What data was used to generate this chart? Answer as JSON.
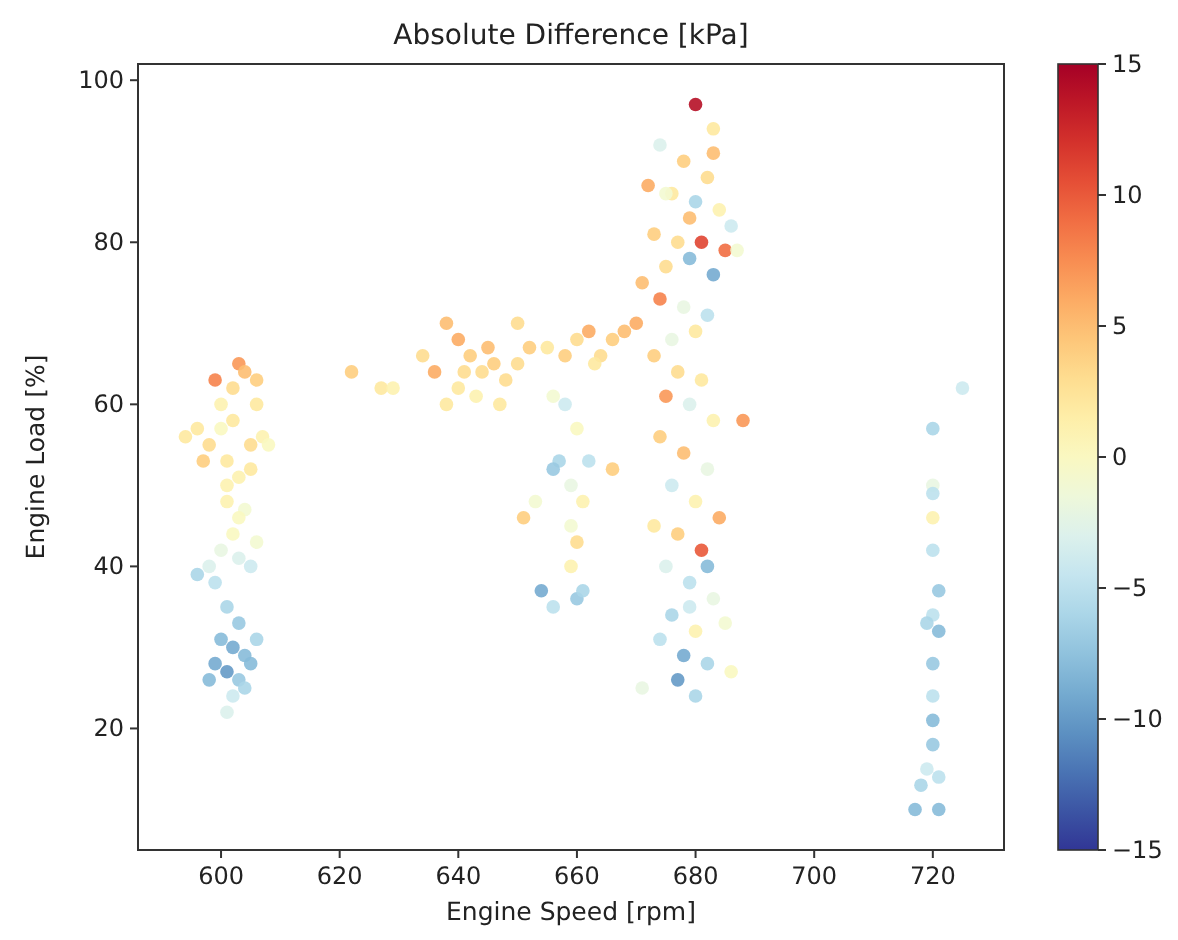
{
  "chart_data": {
    "type": "scatter",
    "title": "Absolute Difference [kPa]",
    "xlabel": "Engine Speed [rpm]",
    "ylabel": "Engine Load [%]",
    "marker": "circle",
    "x": [
      596,
      598,
      600,
      602,
      603,
      599,
      604,
      606,
      607,
      601,
      603,
      605,
      600,
      602,
      605,
      594,
      597,
      606,
      601,
      608,
      601,
      604,
      602,
      600,
      603,
      605,
      598,
      596,
      599,
      606,
      603,
      601,
      603,
      600,
      602,
      604,
      599,
      601,
      605,
      598,
      603,
      606,
      602,
      601,
      604,
      622,
      627,
      629,
      634,
      636,
      638,
      640,
      642,
      644,
      646,
      648,
      645,
      650,
      640,
      643,
      647,
      650,
      652,
      638,
      641,
      655,
      658,
      660,
      662,
      664,
      666,
      668,
      670,
      663,
      656,
      658,
      660,
      657,
      656,
      659,
      662,
      661,
      659,
      660,
      659,
      660,
      654,
      656,
      661,
      653,
      666,
      651,
      680,
      683,
      674,
      678,
      682,
      672,
      676,
      680,
      684,
      686,
      673,
      677,
      681,
      685,
      679,
      675,
      683,
      671,
      687,
      674,
      678,
      682,
      680,
      676,
      673,
      677,
      681,
      675,
      679,
      683,
      688,
      674,
      678,
      682,
      676,
      680,
      684,
      673,
      677,
      681,
      675,
      679,
      683,
      676,
      680,
      685,
      674,
      678,
      682,
      677,
      680,
      671,
      686,
      679,
      682,
      675,
      679,
      683,
      725,
      720,
      720,
      720,
      720,
      720,
      721,
      720,
      719,
      721,
      720,
      720,
      720,
      720,
      719,
      721,
      718,
      717,
      721
    ],
    "values": [
      57,
      55,
      60,
      62,
      65,
      63,
      64,
      60,
      56,
      53,
      51,
      52,
      57,
      58,
      55,
      56,
      53,
      63,
      50,
      55,
      48,
      47,
      44,
      42,
      41,
      40,
      40,
      39,
      38,
      43,
      46,
      35,
      33,
      31,
      30,
      29,
      28,
      27,
      28,
      26,
      26,
      31,
      24,
      22,
      25,
      64,
      62,
      62,
      66,
      64,
      70,
      68,
      66,
      64,
      65,
      63,
      67,
      65,
      62,
      61,
      60,
      70,
      67,
      60,
      64,
      67,
      66,
      68,
      69,
      66,
      68,
      69,
      70,
      65,
      61,
      60,
      57,
      53,
      52,
      50,
      53,
      48,
      45,
      43,
      40,
      36,
      37,
      35,
      37,
      48,
      52,
      46,
      97,
      94,
      92,
      90,
      88,
      87,
      86,
      85,
      84,
      82,
      81,
      80,
      80,
      79,
      78,
      77,
      76,
      75,
      79,
      73,
      72,
      71,
      69,
      68,
      66,
      64,
      63,
      61,
      60,
      58,
      58,
      56,
      54,
      52,
      50,
      48,
      46,
      45,
      44,
      42,
      40,
      38,
      36,
      34,
      32,
      33,
      31,
      29,
      28,
      26,
      24,
      25,
      27,
      35,
      40,
      86,
      83,
      91,
      62,
      57,
      50,
      49,
      46,
      42,
      37,
      34,
      33,
      32,
      28,
      24,
      21,
      18,
      15,
      14,
      13,
      10,
      10
    ],
    "cvalues": [
      2,
      3,
      1,
      3,
      7,
      8,
      5,
      2,
      1,
      2,
      1,
      2,
      0,
      2,
      3,
      2,
      4,
      4,
      1,
      0,
      1,
      -1,
      0,
      -2,
      -3,
      -4,
      -3,
      -6,
      -5,
      -1,
      0,
      -6,
      -7,
      -8,
      -9,
      -8,
      -9,
      -10,
      -8,
      -8,
      -7,
      -6,
      -4,
      -3,
      -6,
      4,
      2,
      1,
      3,
      6,
      5,
      6,
      4,
      3,
      4,
      3,
      5,
      3,
      2,
      1,
      2,
      3,
      4,
      2,
      3,
      2,
      4,
      3,
      6,
      3,
      4,
      5,
      6,
      2,
      -1,
      -4,
      0,
      -6,
      -7,
      -2,
      -5,
      1,
      -1,
      3,
      1,
      -7,
      -9,
      -5,
      -6,
      -1,
      4,
      4,
      14,
      2,
      -3,
      4,
      3,
      6,
      2,
      -6,
      1,
      -4,
      4,
      3,
      11,
      9,
      -8,
      3,
      -9,
      5,
      -1,
      8,
      -2,
      -5,
      2,
      -2,
      4,
      3,
      2,
      7,
      -3,
      1,
      7,
      4,
      5,
      -2,
      -4,
      1,
      6,
      2,
      4,
      10,
      -3,
      -5,
      -2,
      -6,
      1,
      -1,
      -5,
      -9,
      -6,
      -10,
      -6,
      -2,
      0,
      -4,
      -8,
      -1,
      5,
      5,
      -4,
      -6,
      -2,
      -5,
      1,
      -5,
      -7,
      -5,
      -6,
      -8,
      -7,
      -5,
      -8,
      -7,
      -4,
      -5,
      -6,
      -8,
      -8
    ],
    "xlim": [
      586,
      732
    ],
    "ylim": [
      5,
      102
    ],
    "xticks": [
      600,
      620,
      640,
      660,
      680,
      700,
      720
    ],
    "yticks": [
      20,
      40,
      60,
      80,
      100
    ],
    "clim": [
      -15,
      15
    ],
    "cticks": [
      -15,
      -10,
      -5,
      0,
      5,
      10,
      15
    ]
  }
}
